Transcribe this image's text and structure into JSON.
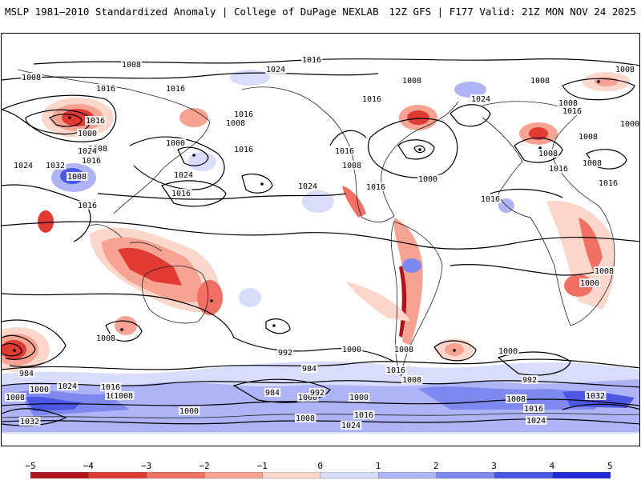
{
  "header": {
    "title_left": "MSLP 1981–2010 Standardized Anomaly | College of DuPage NEXLAB",
    "title_right": "12Z GFS | F177 Valid: 21Z MON NOV 24 2025"
  },
  "colorbar": {
    "labels": [
      "−5",
      "−4",
      "−3",
      "−2",
      "−1",
      "0",
      "1",
      "2",
      "3",
      "4",
      "5"
    ],
    "colors": [
      "#b0141a",
      "#e03a33",
      "#f07063",
      "#f6a393",
      "#fbd6cb",
      "#ffffff",
      "#d9dcfb",
      "#aeb4f5",
      "#7f88ee",
      "#4c57e4",
      "#1f2bd6"
    ]
  },
  "map": {
    "contour_labels": [
      "1008",
      "1016",
      "1024",
      "1016",
      "1008",
      "1016",
      "1016",
      "1000",
      "1008",
      "1016",
      "1024",
      "1024",
      "1032",
      "1008",
      "1016",
      "1000",
      "1016",
      "1008",
      "1016",
      "1024",
      "1016",
      "1024",
      "1016",
      "1016",
      "1008",
      "1008",
      "1000",
      "1016",
      "1024",
      "1008",
      "1008",
      "1000",
      "1008",
      "1016",
      "1008",
      "1008",
      "1016",
      "1016",
      "1008",
      "1016",
      "1008",
      "1000",
      "984",
      "1000",
      "1008",
      "992",
      "984",
      "1000",
      "1008",
      "1000",
      "992",
      "1000",
      "984",
      "992",
      "1000",
      "1008",
      "1016",
      "1032",
      "1000",
      "1008",
      "1024",
      "1008",
      "1016",
      "1024",
      "1016",
      "1024",
      "1032",
      "1000",
      "1008",
      "1016",
      "1008"
    ]
  }
}
